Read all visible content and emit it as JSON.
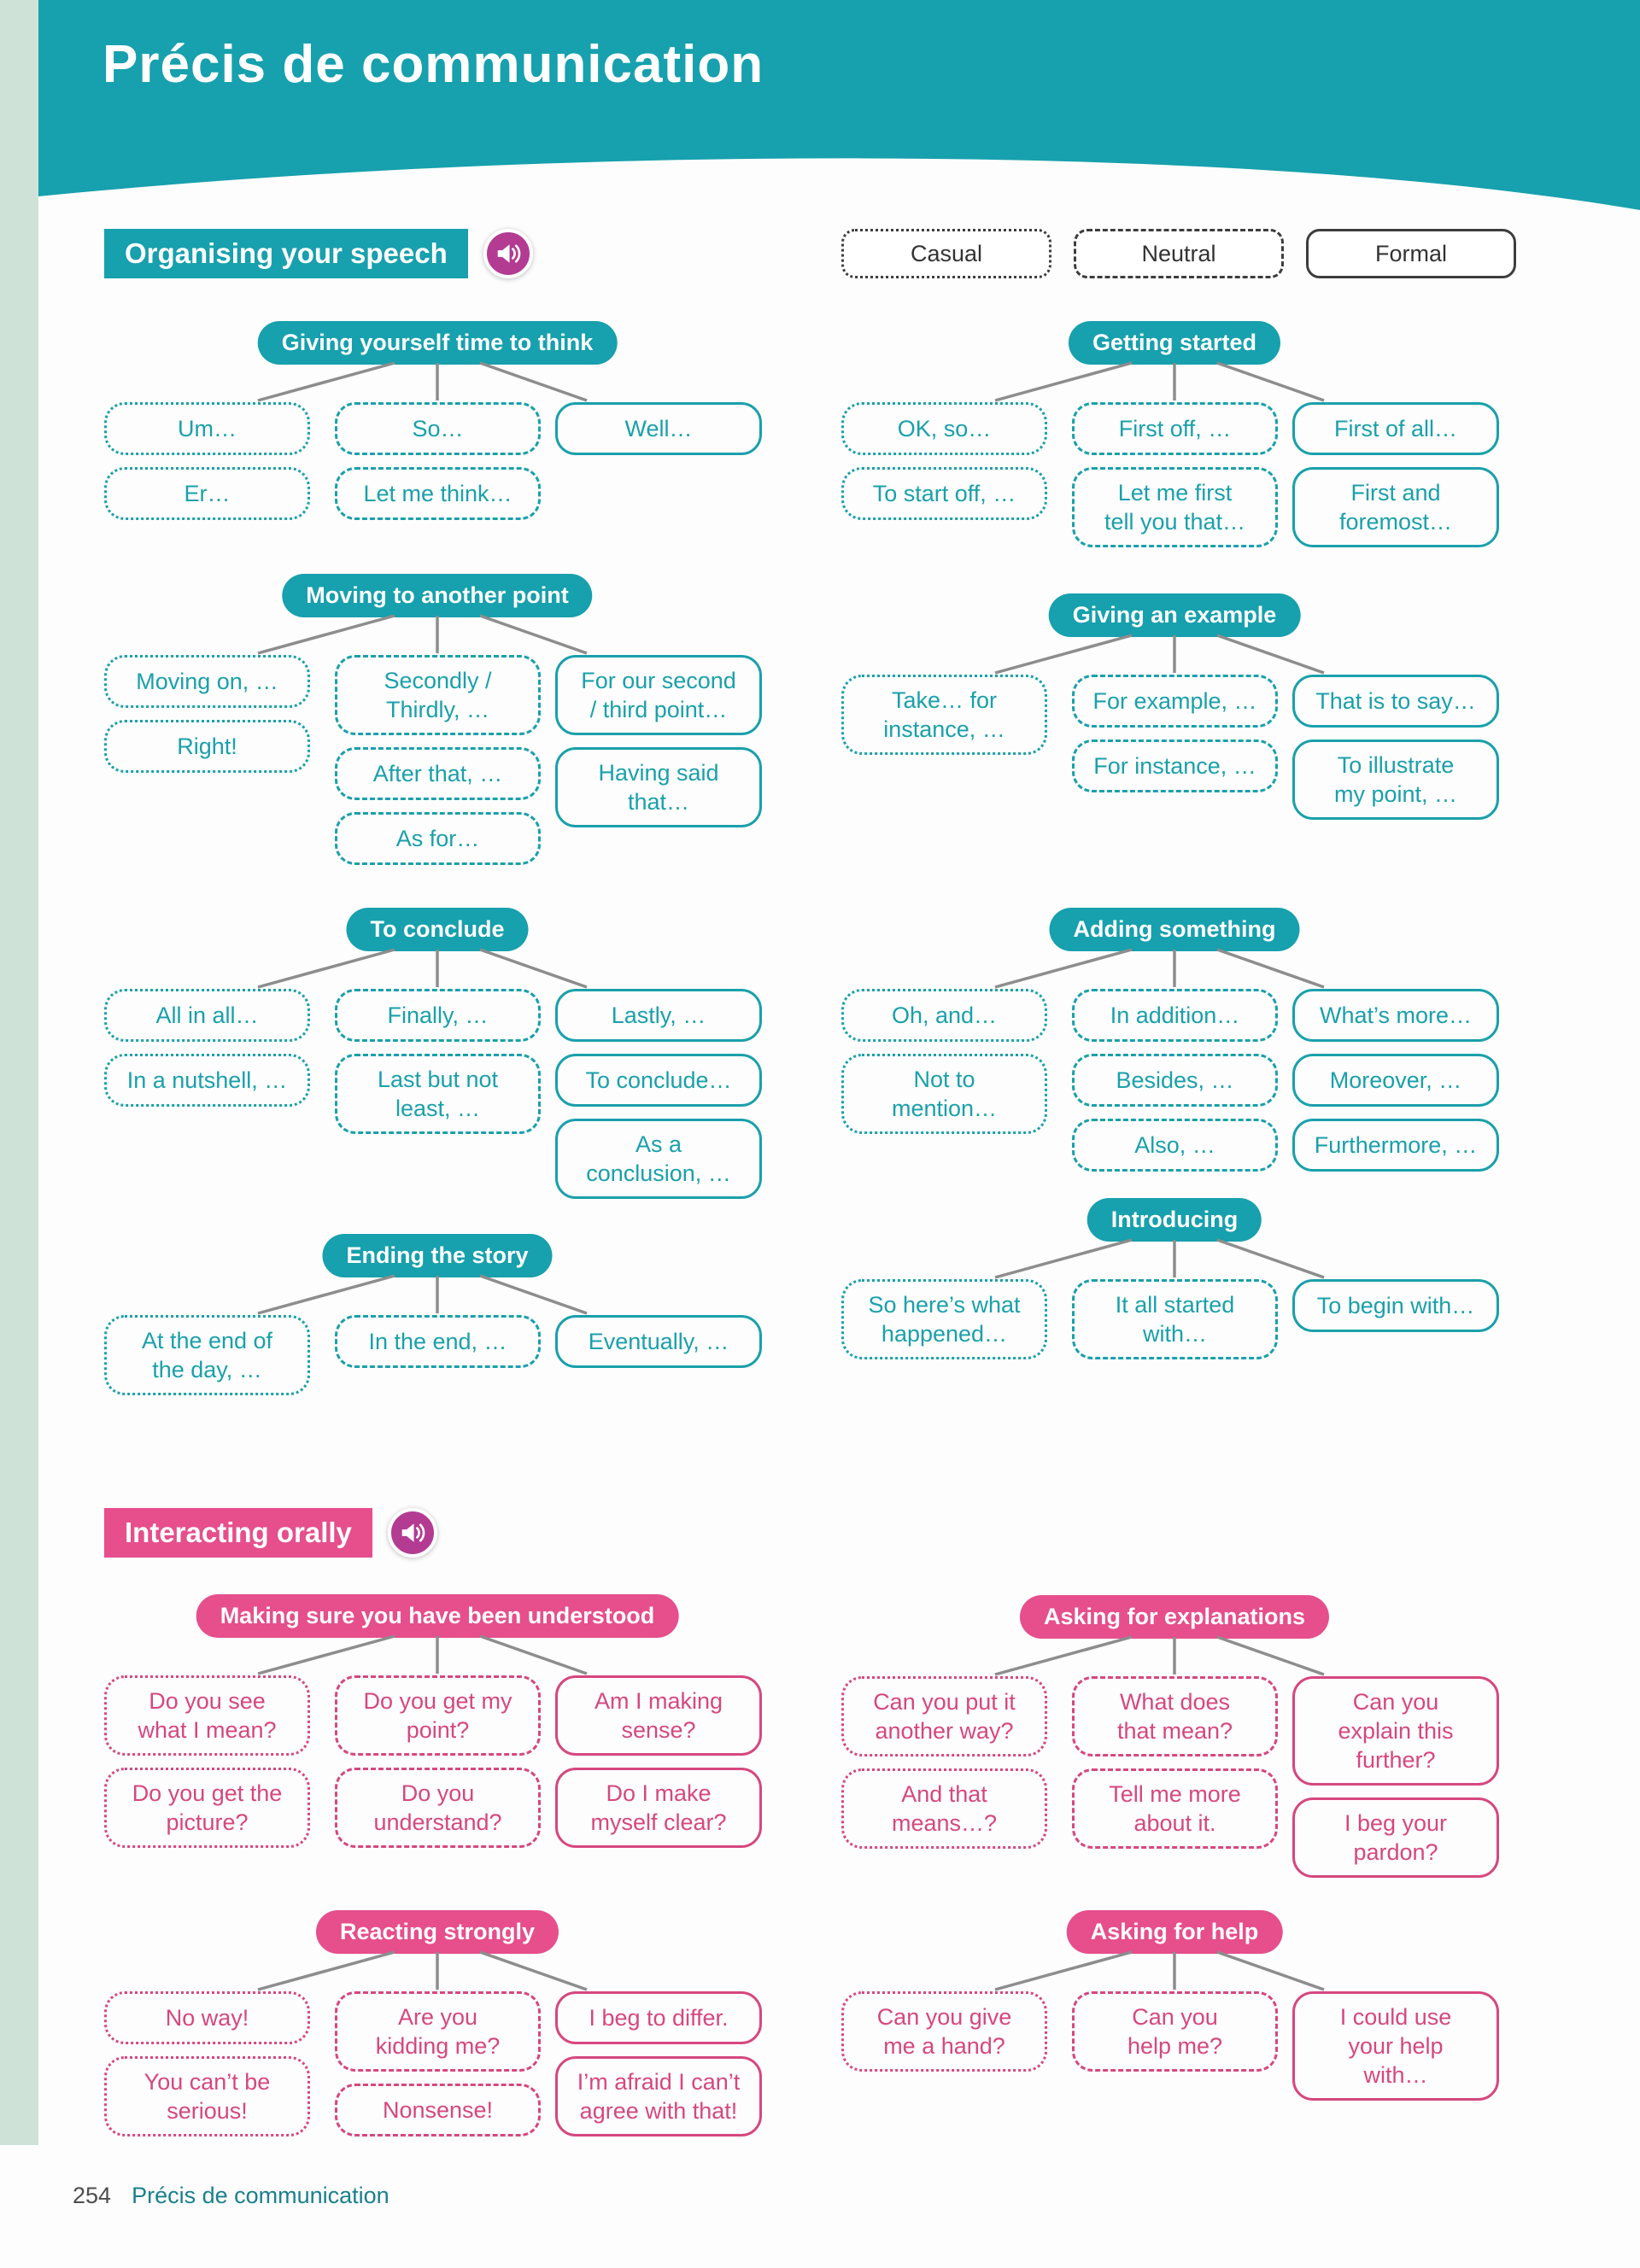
{
  "page": {
    "title": "Précis de communication",
    "footer": {
      "page_number": "254",
      "label": "Précis de communication"
    }
  },
  "colors": {
    "teal_fill": "#17a0ad",
    "teal_box": "#1aa0ab",
    "pink_fill": "#e64e8c",
    "pink_box": "#d6477f",
    "legend_border": "#3d3d3d",
    "connector_gray": "#8d8d8d",
    "sidebar_green": "#cfe2d7",
    "speaker_purple": "#b33b92"
  },
  "legend": [
    {
      "label": "Casual",
      "style": "dotted"
    },
    {
      "label": "Neutral",
      "style": "dashed"
    },
    {
      "label": "Formal",
      "style": "solid"
    }
  ],
  "sections": [
    {
      "label": "Organising your speech",
      "icon": "speaker-icon",
      "color": "teal",
      "groups": [
        {
          "title": "Giving yourself time to think",
          "casual": [
            "Um…",
            "Er…"
          ],
          "neutral": [
            "So…",
            "Let me think…"
          ],
          "formal": [
            "Well…"
          ]
        },
        {
          "title": "Getting started",
          "casual": [
            "OK, so…",
            "To start off, …"
          ],
          "neutral": [
            "First off, …",
            "Let me first\ntell you that…"
          ],
          "formal": [
            "First of all…",
            "First and\nforemost…"
          ]
        },
        {
          "title": "Moving to another point",
          "casual": [
            "Moving on, …",
            "Right!"
          ],
          "neutral": [
            "Secondly /\nThirdly, …",
            "After that, …",
            "As for…"
          ],
          "formal": [
            "For our second\n/ third point…",
            "Having said\nthat…"
          ]
        },
        {
          "title": "Giving an example",
          "casual": [
            "Take… for\ninstance, …"
          ],
          "neutral": [
            "For example, …",
            "For instance, …"
          ],
          "formal": [
            "That is to say…",
            "To illustrate\nmy point, …"
          ]
        },
        {
          "title": "To conclude",
          "casual": [
            "All in all…",
            "In a nutshell, …"
          ],
          "neutral": [
            "Finally, …",
            "Last but not\nleast, …"
          ],
          "formal": [
            "Lastly, …",
            "To conclude…",
            "As a\nconclusion, …"
          ]
        },
        {
          "title": "Adding something",
          "casual": [
            "Oh, and…",
            "Not to\nmention…"
          ],
          "neutral": [
            "In addition…",
            "Besides, …",
            "Also, …"
          ],
          "formal": [
            "What’s more…",
            "Moreover, …",
            "Furthermore, …"
          ]
        },
        {
          "title": "Ending the story",
          "casual": [
            "At the end of\nthe day, …"
          ],
          "neutral": [
            "In the end, …"
          ],
          "formal": [
            "Eventually, …"
          ]
        },
        {
          "title": "Introducing",
          "casual": [
            "So here’s what\nhappened…"
          ],
          "neutral": [
            "It all started\nwith…"
          ],
          "formal": [
            "To begin with…"
          ]
        }
      ]
    },
    {
      "label": "Interacting orally",
      "icon": "speaker-icon",
      "color": "pink",
      "groups": [
        {
          "title": "Making sure you have been understood",
          "casual": [
            "Do you see\nwhat I mean?",
            "Do you get the\npicture?"
          ],
          "neutral": [
            "Do you get my\npoint?",
            "Do you\nunderstand?"
          ],
          "formal": [
            "Am I making\nsense?",
            "Do I make\nmyself clear?"
          ]
        },
        {
          "title": "Asking for explanations",
          "casual": [
            "Can you put it\nanother way?",
            "And that\nmeans…?"
          ],
          "neutral": [
            "What does\nthat mean?",
            "Tell me more\nabout it."
          ],
          "formal": [
            "Can you\nexplain this\nfurther?",
            "I beg your\npardon?"
          ]
        },
        {
          "title": "Reacting strongly",
          "casual": [
            "No way!",
            "You can’t be\nserious!"
          ],
          "neutral": [
            "Are you\nkidding me?",
            "Nonsense!"
          ],
          "formal": [
            "I beg to differ.",
            "I’m afraid I can’t\nagree with that!"
          ]
        },
        {
          "title": "Asking for help",
          "casual": [
            "Can you give\nme a hand?"
          ],
          "neutral": [
            "Can you\nhelp me?"
          ],
          "formal": [
            "I could use\nyour help\nwith…"
          ]
        }
      ]
    }
  ]
}
